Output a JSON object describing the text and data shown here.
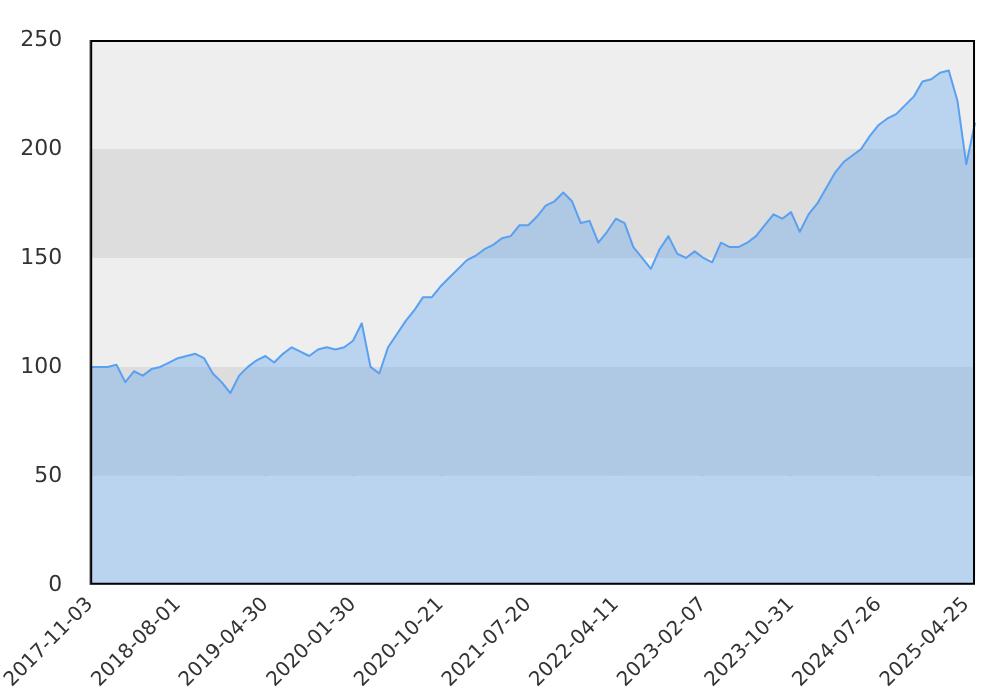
{
  "chart_data": {
    "type": "area",
    "categories": [
      "2017-11-03",
      null,
      null,
      null,
      null,
      null,
      null,
      null,
      null,
      null,
      "2018-08-01",
      null,
      null,
      null,
      null,
      null,
      null,
      null,
      null,
      null,
      "2019-04-30",
      null,
      null,
      null,
      null,
      null,
      null,
      null,
      null,
      null,
      "2020-01-30",
      null,
      null,
      null,
      null,
      null,
      null,
      null,
      null,
      null,
      "2020-10-21",
      null,
      null,
      null,
      null,
      null,
      null,
      null,
      null,
      null,
      "2021-07-20",
      null,
      null,
      null,
      null,
      null,
      null,
      null,
      null,
      null,
      "2022-04-11",
      null,
      null,
      null,
      null,
      null,
      null,
      null,
      null,
      null,
      "2023-02-07",
      null,
      null,
      null,
      null,
      null,
      null,
      null,
      null,
      null,
      "2023-10-31",
      null,
      null,
      null,
      null,
      null,
      null,
      null,
      null,
      null,
      "2024-07-26",
      null,
      null,
      null,
      null,
      null,
      null,
      null,
      null,
      null,
      "2025-04-25",
      null
    ],
    "series": [
      {
        "color": "#5aa0f0",
        "values": [
          100,
          100,
          100,
          101,
          93,
          98,
          96,
          99,
          100,
          102,
          104,
          105,
          106,
          104,
          97,
          93,
          88,
          96,
          100,
          103,
          105,
          102,
          106,
          109,
          107,
          105,
          108,
          109,
          108,
          109,
          112,
          120,
          100,
          97,
          109,
          115,
          121,
          126,
          132,
          132,
          137,
          141,
          145,
          149,
          151,
          154,
          156,
          159,
          160,
          165,
          165,
          169,
          174,
          176,
          180,
          176,
          166,
          167,
          157,
          162,
          168,
          166,
          155,
          150,
          145,
          154,
          160,
          152,
          150,
          153,
          150,
          148,
          157,
          155,
          155,
          157,
          160,
          165,
          170,
          168,
          171,
          162,
          170,
          175,
          182,
          189,
          194,
          197,
          200,
          206,
          211,
          214,
          216,
          220,
          224,
          231,
          232,
          235,
          236,
          222,
          193,
          212
        ]
      }
    ],
    "ylim": [
      0,
      250
    ],
    "yticks": [
      0,
      50,
      100,
      150,
      200,
      250
    ],
    "grid": true,
    "legend": false,
    "marker": "none",
    "line_style": "solid"
  }
}
